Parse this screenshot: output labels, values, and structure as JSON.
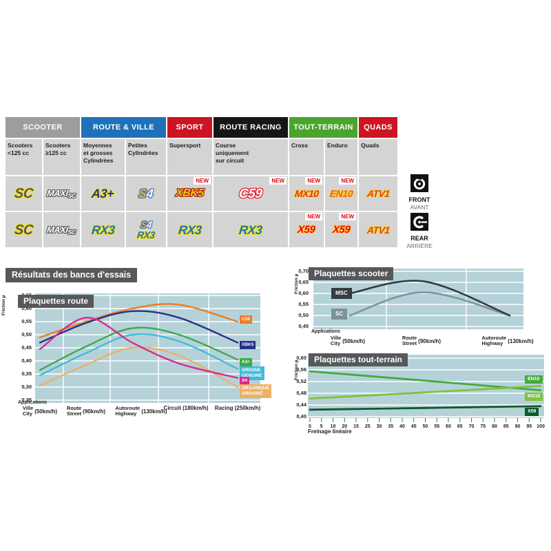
{
  "colors": {
    "chart_bg": "#b5d2d9",
    "title_box": "#58585a",
    "new_badge": "#e30613",
    "grid": "#ffffff",
    "tick": "#3d6a73"
  },
  "table": {
    "new_badge": "NEW",
    "groups": [
      {
        "label": "SCOOTER",
        "bg": "#9d9d9c",
        "span": 2
      },
      {
        "label": "ROUTE & VILLE",
        "bg": "#1e71b8",
        "span": 2
      },
      {
        "label": "SPORT",
        "bg": "#cd1422",
        "span": 1
      },
      {
        "label": "ROUTE RACING",
        "bg": "#161615",
        "span": 1
      },
      {
        "label": "TOUT-TERRAIN",
        "bg": "#4aa42e",
        "span": 2
      },
      {
        "label": "QUADS",
        "bg": "#cd1422",
        "span": 1
      }
    ],
    "subheaders": [
      "Scooters\n<125 cc",
      "Scooters\n≥125 cc",
      "Moyennes\net grosses\nCylindrées",
      "Petites\nCylindrées",
      "Supersport",
      "Course\nuniquement\nsur circuit",
      "Cross",
      "Enduro",
      "Quads"
    ],
    "rows": [
      {
        "side": "front",
        "cells": [
          {
            "logos": [
              "SC"
            ]
          },
          {
            "logos": [
              "MAXISC"
            ]
          },
          {
            "logos": [
              "A3PLUS"
            ]
          },
          {
            "logos": [
              "S4"
            ]
          },
          {
            "logos": [
              "XBK5"
            ],
            "new": true
          },
          {
            "logos": [
              "C59"
            ],
            "new": true
          },
          {
            "logos": [
              "MX10"
            ],
            "new": true
          },
          {
            "logos": [
              "EN10"
            ],
            "new": true
          },
          {
            "logos": [
              "ATV1"
            ]
          }
        ]
      },
      {
        "side": "rear",
        "cells": [
          {
            "logos": [
              "SC"
            ]
          },
          {
            "logos": [
              "MAXISC"
            ]
          },
          {
            "logos": [
              "RX3"
            ]
          },
          {
            "logos": [
              "S4",
              "RX3"
            ]
          },
          {
            "logos": [
              "RX3"
            ]
          },
          {
            "logos": [
              "RX3"
            ]
          },
          {
            "logos": [
              "X59"
            ],
            "new": true
          },
          {
            "logos": [
              "X59"
            ],
            "new": true
          },
          {
            "logos": [
              "ATV1"
            ]
          }
        ]
      }
    ],
    "logos": {
      "SC": {
        "text": "SC",
        "outline": "ol-y"
      },
      "MAXISC": {
        "parts": [
          {
            "t": "MAXI",
            "c": "maxi ol-g"
          },
          {
            "t": "SC",
            "c": "maxisc-sub ol-g"
          }
        ]
      },
      "A3PLUS": {
        "text": "A3+",
        "outline": "ol-y"
      },
      "S4": {
        "parts": [
          {
            "t": "S",
            "c": "s4-s ol-b"
          },
          {
            "t": "4",
            "c": "s4-4 ol-b"
          }
        ]
      },
      "XBK5": {
        "text": "XBK5",
        "outline": "ol-r"
      },
      "C59": {
        "text": "C59",
        "outline": "ol-red"
      },
      "MX10": {
        "text": "MX10",
        "outline": "ol-gold"
      },
      "EN10": {
        "text": "EN10",
        "outline": "ol-gold"
      },
      "ATV1": {
        "text": "ATV1",
        "outline": "ol-gold"
      },
      "RX3": {
        "text": "RX3",
        "outline": "ol-y"
      },
      "X59": {
        "text": "X59",
        "outline": "ol-gold"
      }
    }
  },
  "axle": {
    "front_label": "FRONT",
    "front_label_fr": "AVANT",
    "rear_label": "REAR",
    "rear_label_fr": "ARRIÈRE"
  },
  "results_title": "Résultats des bancs d'essais",
  "chart_data": [
    {
      "id": "route",
      "type": "line",
      "title": "Plaquettes route",
      "ylabel": "Friction µ",
      "applications_label": "Applications",
      "ylim": [
        0.25,
        0.65
      ],
      "yticks": [
        "0,65",
        "0,60",
        "0,55",
        "0,50",
        "0,45",
        "0,40",
        "0,35",
        "0,30",
        "0,25"
      ],
      "ytick_values": [
        0.65,
        0.6,
        0.55,
        0.5,
        0.45,
        0.4,
        0.35,
        0.3,
        0.25
      ],
      "categories": [
        {
          "top": "Ville",
          "bottom": "City",
          "speed": "(50km/h)"
        },
        {
          "top": "Route",
          "bottom": "Street",
          "speed": "(90km/h)"
        },
        {
          "top": "Autoroute",
          "bottom": "Highway",
          "speed": "(130km/h)"
        },
        {
          "top": "Circuit (180km/h)",
          "bottom": "",
          "speed": ""
        },
        {
          "top": "Racing (250km/h)",
          "bottom": "",
          "speed": ""
        }
      ],
      "series": [
        {
          "name": "C59",
          "label_lines": [
            "C59"
          ],
          "color": "#ec7d23",
          "values": [
            0.49,
            0.55,
            0.6,
            0.615,
            0.55
          ]
        },
        {
          "name": "XBK5",
          "label_lines": [
            "XBK5"
          ],
          "color": "#273287",
          "values": [
            0.47,
            0.545,
            0.59,
            0.565,
            0.47
          ]
        },
        {
          "name": "A3+",
          "label_lines": [
            "A3+"
          ],
          "color": "#3fa94d",
          "values": [
            0.365,
            0.455,
            0.525,
            0.5,
            0.405
          ]
        },
        {
          "name": "ORIGINE GENUINE",
          "label_lines": [
            "ORIGINE",
            "GENUINE"
          ],
          "color": "#41bcd8",
          "values": [
            0.345,
            0.43,
            0.5,
            0.475,
            0.37
          ]
        },
        {
          "name": "S4",
          "label_lines": [
            "S4"
          ],
          "color": "#d82b8e",
          "values": [
            0.445,
            0.565,
            0.47,
            0.39,
            0.335
          ]
        },
        {
          "name": "ORGANIQUE ORGANIC",
          "label_lines": [
            "ORGANIQUE",
            "ORGANIC"
          ],
          "color": "#eeb064",
          "values": [
            0.305,
            0.385,
            0.45,
            0.42,
            0.3
          ]
        }
      ]
    },
    {
      "id": "scooter",
      "type": "line",
      "title": "Plaquettes scooter",
      "ylabel": "Friction µ",
      "applications_label": "Applications",
      "ylim": [
        0.45,
        0.7
      ],
      "yticks": [
        "0,70",
        "0,65",
        "0,60",
        "0,55",
        "0,50",
        "0,45"
      ],
      "ytick_values": [
        0.7,
        0.65,
        0.6,
        0.55,
        0.5,
        0.45
      ],
      "categories": [
        {
          "top": "Ville",
          "bottom": "City",
          "speed": "(50km/h)"
        },
        {
          "top": "Route",
          "bottom": "Street",
          "speed": "(90km/h)"
        },
        {
          "top": "Autoroute",
          "bottom": "Highway",
          "speed": "(130km/h)"
        }
      ],
      "series": [
        {
          "name": "MSC",
          "label_lines": [
            "MSC"
          ],
          "color": "#2f3c42",
          "box_color": "#333c40",
          "values": [
            0.6,
            0.655,
            0.5
          ]
        },
        {
          "name": "SC",
          "label_lines": [
            "SC"
          ],
          "color": "#7f959b",
          "box_color": "#7d9296",
          "values": [
            0.5,
            0.605,
            0.5
          ]
        }
      ]
    },
    {
      "id": "terrain",
      "type": "line",
      "title": "Plaquettes tout-terrain",
      "ylabel": "Friction µ",
      "xlabel": "Freinage linéaire",
      "ylim": [
        0.4,
        0.6
      ],
      "xlim": [
        0,
        100
      ],
      "yticks": [
        "0,60",
        "0,56",
        "0,52",
        "0,48",
        "0,44",
        "0,40"
      ],
      "ytick_values": [
        0.6,
        0.56,
        0.52,
        0.48,
        0.44,
        0.4
      ],
      "xticks": [
        "0",
        "5",
        "10",
        "20",
        "15",
        "25",
        "30",
        "35",
        "40",
        "45",
        "50",
        "55",
        "60",
        "65",
        "70",
        "75",
        "80",
        "85",
        "90",
        "95",
        "100"
      ],
      "series": [
        {
          "name": "EN10",
          "label_lines": [
            "EN10"
          ],
          "color": "#45a93c",
          "x": [
            0,
            50,
            100
          ],
          "values": [
            0.555,
            0.523,
            0.49
          ]
        },
        {
          "name": "MX10",
          "label_lines": [
            "MX10"
          ],
          "color": "#7fc241",
          "x": [
            0,
            50,
            100
          ],
          "values": [
            0.462,
            0.483,
            0.505
          ]
        },
        {
          "name": "X59",
          "label_lines": [
            "X59"
          ],
          "color": "#0a5a2d",
          "x": [
            0,
            50,
            100
          ],
          "values": [
            0.424,
            0.43,
            0.436
          ]
        }
      ]
    }
  ]
}
